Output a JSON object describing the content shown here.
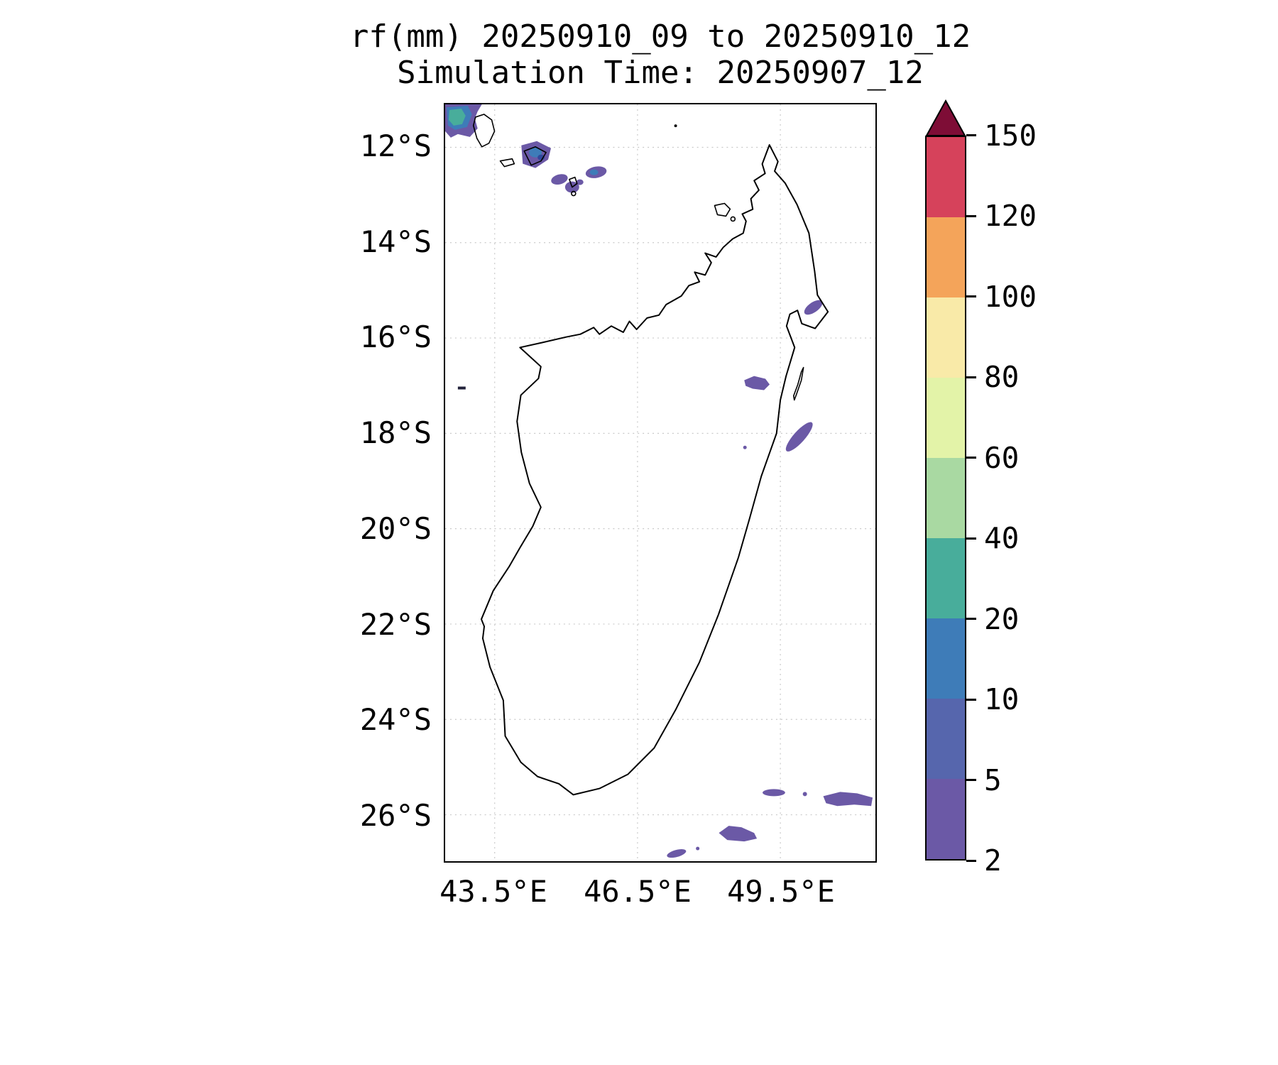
{
  "title": {
    "line1": "rf(mm) 20250910_09 to 20250910_12",
    "line2": "Simulation Time: 20250907_12"
  },
  "axes": {
    "lat_ticks": [
      "12°S",
      "14°S",
      "16°S",
      "18°S",
      "20°S",
      "22°S",
      "24°S",
      "26°S"
    ],
    "lon_ticks": [
      "43.5°E",
      "46.5°E",
      "49.5°E"
    ]
  },
  "colorbar": {
    "tick_labels": [
      "2",
      "5",
      "10",
      "20",
      "40",
      "60",
      "80",
      "100",
      "120",
      "150"
    ],
    "segment_colors_bottom_to_top": [
      "#6b59a6",
      "#5666ad",
      "#3e7cb8",
      "#48ad9b",
      "#a9d9a2",
      "#e3f3a8",
      "#f9eaa8",
      "#f4a45a",
      "#d6425b"
    ],
    "over_arrow_color": "#7e0d36"
  },
  "chart_data": {
    "type": "heatmap",
    "title": "rf(mm) 20250910_09 to 20250910_12",
    "subtitle": "Simulation Time: 20250907_12",
    "variable": "rf(mm)",
    "valid_period_start": "20250910_09",
    "valid_period_end": "20250910_12",
    "simulation_time": "20250907_12",
    "region": "Madagascar and Comoros",
    "lon_axis_ticks_deg_e": [
      43.5,
      46.5,
      49.5
    ],
    "lat_axis_ticks_deg_s": [
      12,
      14,
      16,
      18,
      20,
      22,
      24,
      26
    ],
    "lon_range_deg_e": [
      42.5,
      51.5
    ],
    "lat_range_deg_s": [
      11.1,
      27.0
    ],
    "grid": true,
    "legend_position": "right-colorbar",
    "colorbar_levels_mm": [
      2,
      5,
      10,
      20,
      40,
      60,
      80,
      100,
      120,
      150
    ],
    "colorbar_extends_above_max": true,
    "rain_areas": [
      {
        "location": "Grande Comore (plot top-left corner)",
        "lon_e": 43.3,
        "lat_s": 11.4,
        "max_bin_mm": "20-40"
      },
      {
        "location": "Anjouan island",
        "lon_e": 44.4,
        "lat_s": 12.2,
        "max_bin_mm": "10-20"
      },
      {
        "location": "Mayotte area",
        "lon_e": 45.1,
        "lat_s": 12.7,
        "max_bin_mm": "2-5"
      },
      {
        "location": "NE of Mayotte",
        "lon_e": 45.6,
        "lat_s": 12.5,
        "max_bin_mm": "10-20"
      },
      {
        "location": "Offshore NE Madagascar",
        "lon_e": 50.1,
        "lat_s": 15.3,
        "max_bin_mm": "2-5"
      },
      {
        "location": "Near Ile Sainte-Marie",
        "lon_e": 48.9,
        "lat_s": 16.9,
        "max_bin_mm": "2-5"
      },
      {
        "location": "East coast offshore streak",
        "lon_e": 49.8,
        "lat_s": 18.1,
        "max_bin_mm": "2-5"
      },
      {
        "location": "Southeast ocean patches",
        "lon_e": 49.5,
        "lat_s": 25.6,
        "max_bin_mm": "2-5"
      },
      {
        "location": "Southeast ocean patches",
        "lon_e": 48.8,
        "lat_s": 26.4,
        "max_bin_mm": "2-5"
      },
      {
        "location": "South ocean small streak",
        "lon_e": 47.3,
        "lat_s": 26.9,
        "max_bin_mm": "2-5"
      }
    ]
  }
}
